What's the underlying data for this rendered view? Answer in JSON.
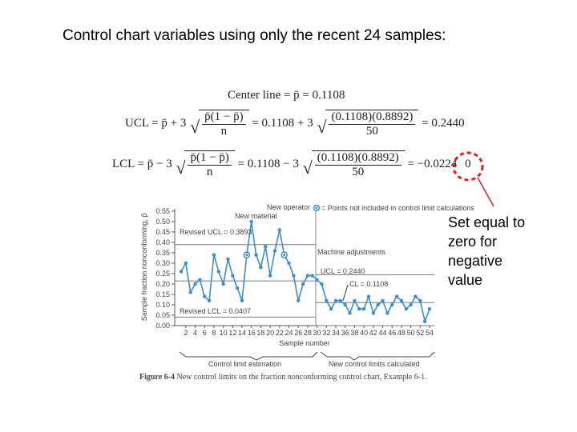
{
  "slide": {
    "title": "Control chart variables using only the recent 24 samples:",
    "note": "Set equal to zero for negative value"
  },
  "formulas": {
    "center_line": "Center line = p̄ = 0.1108",
    "ucl_lhs": "UCL = p̄ + 3",
    "ucl_num": "p̄(1 − p̄)",
    "ucl_den": "n",
    "ucl_mid": "= 0.1108 + 3",
    "ucl_num2": "(0.1108)(0.8892)",
    "ucl_den2": "50",
    "ucl_result": "= 0.2440",
    "lcl_lhs": "LCL = p̄ − 3",
    "lcl_num": "p̄(1 − p̄)",
    "lcl_den": "n",
    "lcl_mid": "= 0.1108 − 3",
    "lcl_num2": "(0.1108)(0.8892)",
    "lcl_den2": "50",
    "lcl_result": "= −0.0224",
    "lcl_zero": "0"
  },
  "chart_data": {
    "type": "line",
    "ylabel": "Sample fraction nonconforming, p̂",
    "xlabel": "Sample number",
    "ylim": [
      0,
      0.55
    ],
    "xlim": [
      1,
      54
    ],
    "y_ticks": [
      "0.00",
      "0.05",
      "0.10",
      "0.15",
      "0.20",
      "0.25",
      "0.30",
      "0.35",
      "0.40",
      "0.45",
      "0.50",
      "0.55"
    ],
    "x_ticks": [
      "2",
      "4",
      "6",
      "8",
      "10",
      "12",
      "14",
      "16",
      "18",
      "20",
      "22",
      "24",
      "26",
      "28",
      "30",
      "32",
      "34",
      "36",
      "38",
      "40",
      "42",
      "44",
      "46",
      "48",
      "50",
      "52",
      "54"
    ],
    "series": [
      {
        "x": [
          1,
          2,
          3,
          4,
          5,
          6,
          7,
          8,
          9,
          10,
          11,
          12,
          13,
          14,
          15,
          16,
          17,
          18,
          19,
          20,
          21,
          22,
          23,
          24,
          25,
          26,
          27,
          28,
          29,
          30,
          31,
          32,
          33,
          34,
          35,
          36,
          37,
          38,
          39,
          40,
          41,
          42,
          43,
          44,
          45,
          46,
          47,
          48,
          49,
          50,
          51,
          52,
          53,
          54
        ],
        "values": [
          0.26,
          0.3,
          0.16,
          0.2,
          0.22,
          0.14,
          0.12,
          0.34,
          0.26,
          0.2,
          0.32,
          0.24,
          0.18,
          0.12,
          0.34,
          0.5,
          0.34,
          0.28,
          0.38,
          0.24,
          0.36,
          0.46,
          0.34,
          0.3,
          0.24,
          0.12,
          0.2,
          0.24,
          0.24,
          0.22,
          0.2,
          0.12,
          0.08,
          0.12,
          0.12,
          0.1,
          0.06,
          0.12,
          0.08,
          0.08,
          0.14,
          0.06,
          0.1,
          0.12,
          0.06,
          0.1,
          0.14,
          0.12,
          0.08,
          0.1,
          0.14,
          0.12,
          0.02,
          0.08
        ],
        "marked_x": [
          15,
          23
        ]
      }
    ],
    "limits": {
      "revised_ucl": 0.3893,
      "revised_cl": 0.215,
      "revised_lcl": 0.0407,
      "new_ucl": 0.244,
      "new_cl": 0.1108,
      "new_lcl": 0.0
    },
    "annotations": {
      "revised_ucl": "Revised UCL = 0.3893",
      "revised_lcl": "Revised LCL = 0.0407",
      "new_material": "New material",
      "new_operator": "New operator",
      "machine_adjustments": "Machine adjustments",
      "ucl_new": "UCL = 0.2440",
      "cl_new": "CL = 0.1108",
      "legend_text": "= Points not included in control limit calculations",
      "bracket_left": "Control limit estimation",
      "bracket_right": "New control limits calculated"
    }
  },
  "caption": {
    "figure": "Figure 6-4",
    "text": "New control limits on the fraction nonconforming control chart, Example 6-1."
  },
  "colors": {
    "series": "#3a8fd0",
    "limit_line": "#7a7a7a",
    "callout": "#e02020"
  }
}
